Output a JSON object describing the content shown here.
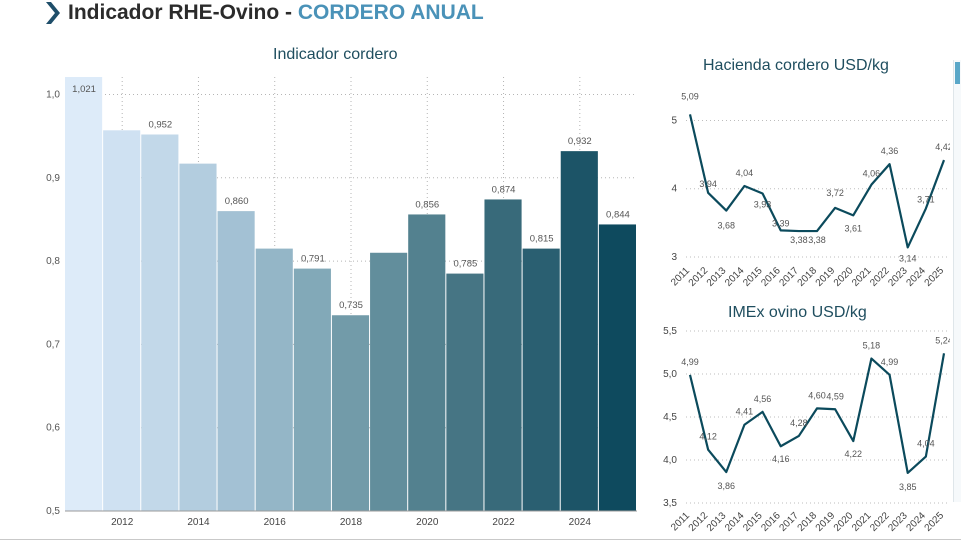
{
  "header": {
    "title": "Indicador RHE-Ovino - ",
    "accent": "CORDERO ANUAL",
    "accent_color": "#4a92b8"
  },
  "chart_data": [
    {
      "id": "main",
      "type": "bar",
      "title": "Indicador cordero",
      "categories": [
        "2011",
        "2012",
        "2013",
        "2014",
        "2015",
        "2016",
        "2017",
        "2018",
        "2019",
        "2020",
        "2021",
        "2022",
        "2023",
        "2024",
        "2025"
      ],
      "values": [
        1.021,
        0.957,
        0.952,
        0.917,
        0.86,
        0.815,
        0.791,
        0.735,
        0.81,
        0.856,
        0.785,
        0.874,
        0.815,
        0.932,
        0.844
      ],
      "value_labels": [
        "1,021",
        "",
        "0,952",
        "",
        "0,860",
        "",
        "0,791",
        "0,735",
        "",
        "0,856",
        "0,785",
        "0,874",
        "0,815",
        "0,932",
        "0,844"
      ],
      "xtick_labels": [
        "2012",
        "2014",
        "2016",
        "2018",
        "2020",
        "2022",
        "2024"
      ],
      "ylim": [
        0.5,
        1.021
      ],
      "yticks": [
        "0,5",
        "0,6",
        "0,7",
        "0,8",
        "0,9",
        "1,0"
      ],
      "ytick_values": [
        0.5,
        0.6,
        0.7,
        0.8,
        0.9,
        1.0
      ],
      "grid": true,
      "colors": [
        "#ddebf9",
        "#cfe1f2",
        "#c2d8e9",
        "#b3cddf",
        "#a3c1d4",
        "#94b6c7",
        "#82a9b8",
        "#729ba9",
        "#628e9c",
        "#53818f",
        "#467584",
        "#386a7a",
        "#2a5f71",
        "#1c5467",
        "#0e4a5e"
      ]
    },
    {
      "id": "hacienda",
      "type": "line",
      "title": "Hacienda cordero USD/kg",
      "x": [
        "2011",
        "2012",
        "2013",
        "2014",
        "2015",
        "2016",
        "2017",
        "2018",
        "2019",
        "2020",
        "2021",
        "2022",
        "2023",
        "2024",
        "2025"
      ],
      "values": [
        5.09,
        3.94,
        3.68,
        4.04,
        3.93,
        3.39,
        3.38,
        3.38,
        3.72,
        3.61,
        4.06,
        4.36,
        3.14,
        3.71,
        4.42
      ],
      "value_labels": [
        "5,09",
        "3,94",
        "3,68",
        "4,04",
        "3,93",
        "3,39",
        "3,38",
        "3,38",
        "3,72",
        "3,61",
        "4,06",
        "4,36",
        "3,14",
        "3,71",
        "4,42"
      ],
      "ylim": [
        3,
        5.3
      ],
      "yticks": [
        "3",
        "4",
        "5"
      ],
      "ytick_values": [
        3,
        4,
        5
      ],
      "grid": true,
      "line_color": "#0b4a5c"
    },
    {
      "id": "imex",
      "type": "line",
      "title": "IMEx ovino USD/kg",
      "x": [
        "2011",
        "2012",
        "2013",
        "2014",
        "2015",
        "2016",
        "2017",
        "2018",
        "2019",
        "2020",
        "2021",
        "2022",
        "2023",
        "2024",
        "2025"
      ],
      "values": [
        4.99,
        4.12,
        3.86,
        4.41,
        4.56,
        4.16,
        4.28,
        4.6,
        4.59,
        4.22,
        5.18,
        4.99,
        3.85,
        4.04,
        5.24
      ],
      "value_labels": [
        "4,99",
        "4,12",
        "3,86",
        "4,41",
        "4,56",
        "4,16",
        "4,28",
        "4,60",
        "4,59",
        "4,22",
        "5,18",
        "4,99",
        "3,85",
        "4,04",
        "5,24"
      ],
      "ylim": [
        3.5,
        5.5
      ],
      "yticks": [
        "3,5",
        "4,0",
        "4,5",
        "5,0",
        "5,5"
      ],
      "ytick_values": [
        3.5,
        4.0,
        4.5,
        5.0,
        5.5
      ],
      "grid": true,
      "line_color": "#0b4a5c"
    }
  ]
}
